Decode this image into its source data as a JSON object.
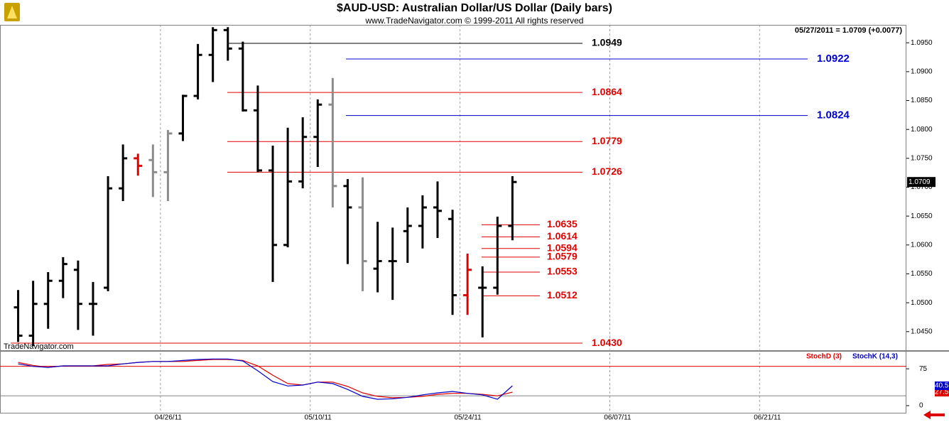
{
  "chart_data": [
    {
      "type": "ohlc",
      "title": "$AUD-USD:  Australian Dollar/US Dollar  (Daily bars)",
      "subtitle": "www.TradeNavigator.com © 1999-2011 All rights reserved",
      "info": "05/27/2011 = 1.0709 (+0.0077)",
      "watermark": "TradeNavigator.com",
      "open": [
        1.0492,
        1.0443,
        1.0498,
        1.0538,
        1.0557,
        1.0498,
        1.0526,
        1.0698,
        1.075,
        1.0747,
        1.0726,
        1.0793,
        1.0858,
        1.0929,
        1.0972,
        1.094,
        1.0833,
        1.0729,
        1.06,
        1.071,
        1.0787,
        1.0843,
        1.0702,
        1.0665,
        1.0559,
        1.0572,
        1.0624,
        1.0633,
        1.0665,
        1.0645,
        1.0513,
        1.0526,
        1.0526,
        1.0633
      ],
      "high": [
        1.0522,
        1.0538,
        1.0553,
        1.0579,
        1.0573,
        1.0536,
        1.0719,
        1.0774,
        1.0758,
        1.0774,
        1.0799,
        1.086,
        1.0948,
        1.0977,
        1.0977,
        1.0952,
        1.0876,
        1.0772,
        1.0803,
        1.0821,
        1.0852,
        1.0889,
        1.0714,
        1.0717,
        1.064,
        1.063,
        1.0665,
        1.0686,
        1.071,
        1.0661,
        1.0585,
        1.0563,
        1.0649,
        1.0719
      ],
      "low": [
        1.0432,
        1.0425,
        1.0455,
        1.0508,
        1.0453,
        1.0443,
        1.052,
        1.0676,
        1.072,
        1.0683,
        1.0676,
        1.078,
        1.0852,
        1.0882,
        1.0919,
        1.0831,
        1.0726,
        1.0536,
        1.0596,
        1.0698,
        1.0735,
        1.0665,
        1.0567,
        1.052,
        1.0518,
        1.0505,
        1.0569,
        1.0594,
        1.0612,
        1.0479,
        1.0479,
        1.044,
        1.0514,
        1.0608
      ],
      "close": [
        1.0443,
        1.0498,
        1.0538,
        1.0567,
        1.0498,
        1.0498,
        1.0698,
        1.075,
        1.0737,
        1.0726,
        1.0793,
        1.0858,
        1.0929,
        1.0972,
        1.094,
        1.0833,
        1.0729,
        1.06,
        1.071,
        1.0787,
        1.0843,
        1.0702,
        1.0665,
        1.0572,
        1.0572,
        1.0572,
        1.0633,
        1.0665,
        1.0659,
        1.0513,
        1.0557,
        1.0526,
        1.0633,
        1.0709
      ],
      "colors": [
        "#000",
        "#000",
        "#000",
        "#000",
        "#000",
        "#000",
        "#000",
        "#000",
        "#e00000",
        "#8c8c8c",
        "#8c8c8c",
        "#000",
        "#000",
        "#000",
        "#000",
        "#000",
        "#000",
        "#000",
        "#000",
        "#000",
        "#000",
        "#8c8c8c",
        "#000",
        "#8c8c8c",
        "#000",
        "#000",
        "#000",
        "#000",
        "#000",
        "#000",
        "#e00000",
        "#000",
        "#000",
        "#000"
      ],
      "xlim": [
        0,
        59.8
      ],
      "xticks": [
        {
          "value": 10,
          "label": "04/26/11"
        },
        {
          "value": 20,
          "label": "05/10/11"
        },
        {
          "value": 30,
          "label": "05/24/11"
        },
        {
          "value": 40,
          "label": "06/07/11"
        },
        {
          "value": 50,
          "label": "06/21/11"
        }
      ],
      "ylim": [
        1.0419,
        1.0981
      ],
      "yticks": [
        {
          "value": 1.045,
          "label": "1.0450"
        },
        {
          "value": 1.05,
          "label": "1.0500"
        },
        {
          "value": 1.055,
          "label": "1.0550"
        },
        {
          "value": 1.06,
          "label": "1.0600"
        },
        {
          "value": 1.065,
          "label": "1.0650"
        },
        {
          "value": 1.07,
          "label": "1.0700"
        },
        {
          "value": 1.075,
          "label": "1.0750"
        },
        {
          "value": 1.08,
          "label": "1.0800"
        },
        {
          "value": 1.085,
          "label": "1.0850"
        },
        {
          "value": 1.09,
          "label": "1.0900"
        },
        {
          "value": 1.095,
          "label": "1.0950"
        }
      ],
      "levels": [
        {
          "value": 1.0949,
          "color": "#000000"
        },
        {
          "value": 1.0922,
          "color": "#0000cc"
        },
        {
          "value": 1.0864,
          "color": "#e00000"
        },
        {
          "value": 1.0824,
          "color": "#0000cc"
        },
        {
          "value": 1.0779,
          "color": "#e00000"
        },
        {
          "value": 1.0726,
          "color": "#e00000"
        },
        {
          "value": 1.0635,
          "color": "#e00000"
        },
        {
          "value": 1.0614,
          "color": "#e00000"
        },
        {
          "value": 1.0594,
          "color": "#e00000"
        },
        {
          "value": 1.0579,
          "color": "#e00000"
        },
        {
          "value": 1.0553,
          "color": "#e00000"
        },
        {
          "value": 1.0512,
          "color": "#e00000"
        },
        {
          "value": {
            "value": 1.043,
            "label": "1.0430"
          },
          "color": "#e00000"
        }
      ]
    },
    {
      "type": "line",
      "series": [
        {
          "name": "StochD (3)",
          "color": "#e00000",
          "values": [
            88,
            82,
            78,
            81,
            81,
            81,
            84,
            85,
            88,
            90,
            90,
            90,
            92,
            94,
            94,
            92,
            81,
            62,
            45,
            42,
            48,
            48,
            39,
            26,
            19,
            16,
            17,
            19,
            23,
            25,
            25,
            23,
            20,
            27.51
          ]
        },
        {
          "name": "StochK (14,3)",
          "color": "#0000cc",
          "values": [
            85,
            80,
            78,
            81,
            81,
            81,
            81,
            85,
            88,
            90,
            90,
            92,
            94,
            95,
            95,
            91,
            71,
            49,
            40,
            42,
            48,
            45,
            33,
            19,
            13,
            14,
            17,
            22,
            26,
            29,
            25,
            22,
            13,
            40.55
          ]
        }
      ],
      "xlim": [
        0,
        59.8
      ],
      "xticks": [
        {
          "value": 10,
          "label": "04/26/11"
        },
        {
          "value": 20,
          "label": "05/10/11"
        },
        {
          "value": 30,
          "label": "05/24/11"
        },
        {
          "value": 40,
          "label": "06/07/11"
        },
        {
          "value": 50,
          "label": "06/21/11"
        }
      ],
      "ylim": [
        -13,
        107
      ],
      "yticks": [
        0,
        75
      ],
      "levels": [
        {
          "value": 80,
          "color": "#e00000"
        },
        {
          "value": 20,
          "color": "#808080"
        }
      ]
    }
  ]
}
